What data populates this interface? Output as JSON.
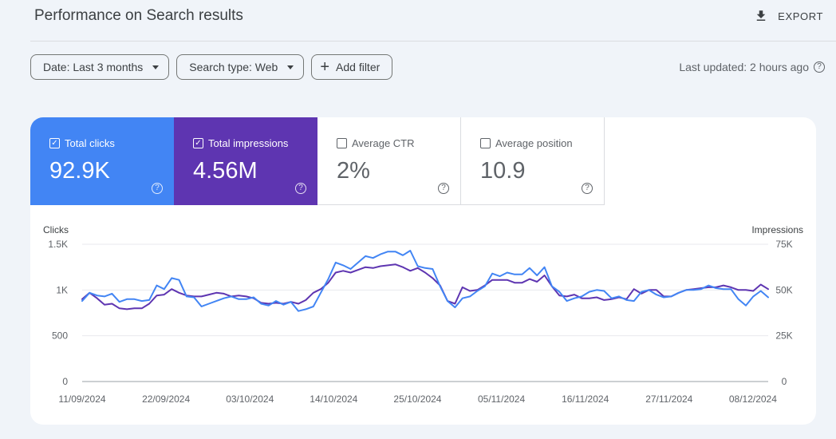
{
  "header": {
    "title": "Performance on Search results",
    "export_label": "EXPORT"
  },
  "filters": {
    "date_label": "Date: Last 3 months",
    "search_type_label": "Search type: Web",
    "add_filter_label": "Add filter",
    "last_updated": "Last updated: 2 hours ago"
  },
  "metrics": {
    "clicks": {
      "label": "Total clicks",
      "value": "92.9K",
      "checked": true
    },
    "impressions": {
      "label": "Total impressions",
      "value": "4.56M",
      "checked": true
    },
    "ctr": {
      "label": "Average CTR",
      "value": "2%",
      "checked": false
    },
    "position": {
      "label": "Average position",
      "value": "10.9",
      "checked": false
    }
  },
  "colors": {
    "clicks": "#4285f4",
    "impressions": "#5e35b1",
    "background": "#f0f4f9"
  },
  "icons": {
    "export": "download-icon",
    "add": "plus-icon",
    "help": "help-circle-icon",
    "dropdown": "caret-down-icon",
    "checkbox": "checkbox-icon"
  },
  "chart_data": {
    "type": "line",
    "left_axis_label": "Clicks",
    "right_axis_label": "Impressions",
    "left_ticks": [
      "0",
      "500",
      "1K",
      "1.5K"
    ],
    "right_ticks": [
      "0",
      "25K",
      "50K",
      "75K"
    ],
    "ylim_left": [
      0,
      1500
    ],
    "ylim_right": [
      0,
      75000
    ],
    "x_tick_labels": [
      "11/09/2024",
      "22/09/2024",
      "03/10/2024",
      "14/10/2024",
      "25/10/2024",
      "05/11/2024",
      "16/11/2024",
      "27/11/2024",
      "08/12/2024"
    ],
    "x_range": [
      "11/09/2024",
      "10/12/2024"
    ],
    "grid": true,
    "series": [
      {
        "name": "Clicks",
        "axis": "left",
        "color": "#4285f4",
        "values": [
          880,
          970,
          940,
          930,
          960,
          870,
          900,
          900,
          880,
          890,
          1050,
          1010,
          1130,
          1110,
          930,
          920,
          820,
          850,
          880,
          910,
          930,
          900,
          900,
          920,
          850,
          830,
          880,
          840,
          870,
          770,
          790,
          820,
          970,
          1120,
          1300,
          1270,
          1230,
          1300,
          1370,
          1350,
          1390,
          1420,
          1420,
          1380,
          1430,
          1260,
          1240,
          1230,
          1040,
          880,
          810,
          910,
          930,
          990,
          1040,
          1180,
          1150,
          1190,
          1170,
          1170,
          1240,
          1160,
          1250,
          1040,
          980,
          880,
          910,
          930,
          980,
          1000,
          990,
          910,
          930,
          890,
          880,
          980,
          1000,
          950,
          920,
          930,
          970,
          1000,
          1000,
          1010,
          1050,
          1020,
          1010,
          1010,
          900,
          830,
          930,
          990,
          920
        ]
      },
      {
        "name": "Impressions",
        "axis": "right",
        "color": "#5e35b1",
        "values": [
          45000,
          48500,
          45500,
          42000,
          42500,
          40000,
          39500,
          40000,
          40000,
          42500,
          47000,
          47500,
          50500,
          48500,
          47000,
          46500,
          46500,
          47500,
          48500,
          48000,
          46500,
          47000,
          46500,
          45500,
          43000,
          42500,
          43000,
          42500,
          43500,
          42500,
          44500,
          48500,
          50500,
          54000,
          59500,
          60500,
          59500,
          61000,
          62500,
          62000,
          63000,
          63500,
          64000,
          62500,
          60500,
          62000,
          59500,
          56500,
          52500,
          44000,
          42500,
          51500,
          49500,
          50000,
          52500,
          55500,
          55500,
          55500,
          54000,
          54000,
          56000,
          54500,
          58000,
          52000,
          47000,
          46500,
          47500,
          45500,
          45500,
          46000,
          44500,
          45000,
          46000,
          45000,
          50500,
          48000,
          50000,
          50000,
          46500,
          46500,
          48500,
          50000,
          50500,
          51000,
          51500,
          51500,
          52500,
          51500,
          50000,
          50000,
          49500,
          53000,
          50500
        ]
      }
    ]
  }
}
